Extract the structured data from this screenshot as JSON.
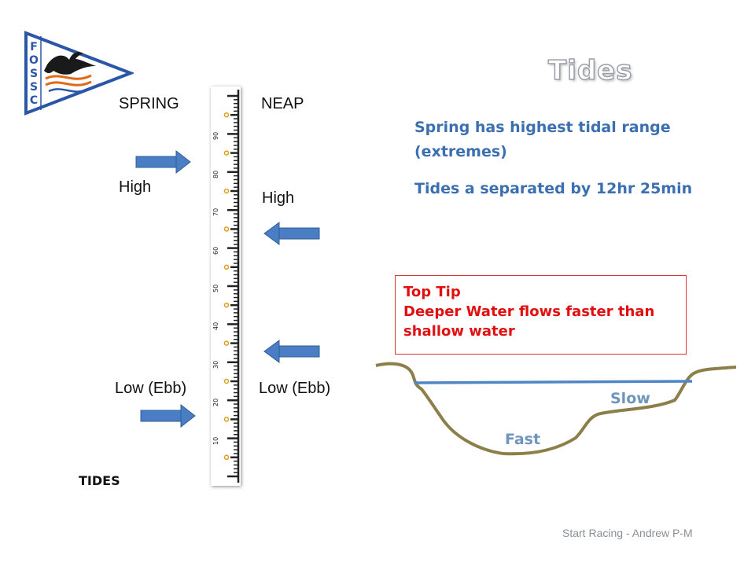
{
  "slide": {
    "title": "Tides",
    "footer": "Start Racing - Andrew P-M",
    "caption": "TIDES"
  },
  "logo": {
    "letters": [
      "F",
      "O",
      "S",
      "S",
      "C"
    ],
    "colors": {
      "border": "#2b56a8",
      "swirl": "#e06a1a"
    },
    "icon": "burgee-with-bird-icon"
  },
  "columns": {
    "spring": {
      "header": "SPRING",
      "high": "High",
      "low": "Low (Ebb)"
    },
    "neap": {
      "header": "NEAP",
      "high": "High",
      "low": "Low (Ebb)"
    }
  },
  "gauge": {
    "tick_labels": [
      "90",
      "80",
      "70",
      "60",
      "50",
      "40",
      "30",
      "20",
      "10"
    ],
    "range": [
      0,
      100
    ]
  },
  "arrows": {
    "color": "#4a7ec4",
    "items": [
      {
        "side": "spring",
        "direction": "right",
        "marks": "High"
      },
      {
        "side": "spring",
        "direction": "right",
        "marks": "Low (Ebb)"
      },
      {
        "side": "neap",
        "direction": "left",
        "marks": "High"
      },
      {
        "side": "neap",
        "direction": "left",
        "marks": "Low (Ebb)"
      }
    ]
  },
  "info": {
    "line1": "Spring has highest tidal range (extremes)",
    "line2": "Tides a separated by 12hr 25min"
  },
  "tip": {
    "heading": "Top Tip",
    "body": "Deeper Water flows faster than shallow water"
  },
  "river": {
    "shallow_label": "Slow",
    "deep_label": "Fast",
    "colors": {
      "bank": "#8c7f4a",
      "water": "#4f86c6"
    }
  }
}
